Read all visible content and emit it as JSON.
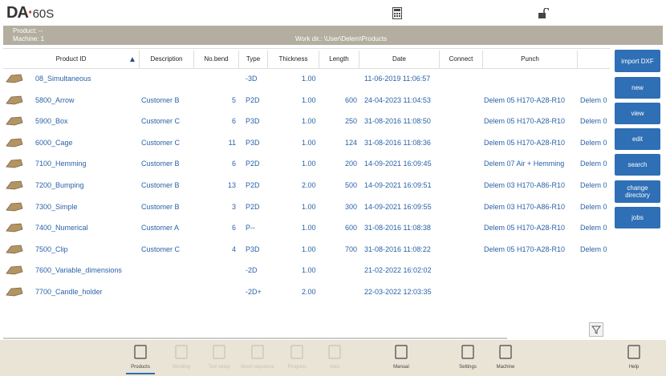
{
  "header": {
    "logo_main": "DA",
    "logo_dot": "·",
    "logo_model": "60S"
  },
  "status": {
    "product": "Product: --",
    "machine": "Machine: 1",
    "workdir": "Work dir.: \\User\\Delem\\Products"
  },
  "table": {
    "columns": [
      "Product ID",
      "Description",
      "No.bend",
      "Type",
      "Thickness",
      "Length",
      "Date",
      "Connect",
      "Punch"
    ],
    "sort_indicator": "▲",
    "rows": [
      {
        "id": "08_Simultaneous",
        "type": "-3D",
        "thickness": "1.00",
        "date": "11-06-2019 11:06:57"
      },
      {
        "id": "5800_Arrow",
        "description": "Customer B",
        "bends": "5",
        "type": "P2D",
        "thickness": "1.00",
        "length": "600",
        "date": "24-04-2023 11:04:53",
        "punch": "Delem 05 H170-A28-R10",
        "die": "Delem 0"
      },
      {
        "id": "5900_Box",
        "description": "Customer C",
        "bends": "6",
        "type": "P3D",
        "thickness": "1.00",
        "length": "250",
        "date": "31-08-2016 11:08:50",
        "punch": "Delem 05 H170-A28-R10",
        "die": "Delem 0"
      },
      {
        "id": "6000_Cage",
        "description": "Customer C",
        "bends": "11",
        "type": "P3D",
        "thickness": "1.00",
        "length": "124",
        "date": "31-08-2016 11:08:36",
        "punch": "Delem 05 H170-A28-R10",
        "die": "Delem 0"
      },
      {
        "id": "7100_Hemming",
        "description": "Customer B",
        "bends": "6",
        "type": "P2D",
        "thickness": "1.00",
        "length": "200",
        "date": "14-09-2021 16:09:45",
        "punch": "Delem 07 Air + Hemming",
        "die": "Delem 0"
      },
      {
        "id": "7200_Bumping",
        "description": "Customer B",
        "bends": "13",
        "type": "P2D",
        "thickness": "2.00",
        "length": "500",
        "date": "14-09-2021 16:09:51",
        "punch": "Delem 03 H170-A86-R10",
        "die": "Delem 0"
      },
      {
        "id": "7300_Simple",
        "description": "Customer B",
        "bends": "3",
        "type": "P2D",
        "thickness": "1.00",
        "length": "300",
        "date": "14-09-2021 16:09:55",
        "punch": "Delem 03 H170-A86-R10",
        "die": "Delem 0"
      },
      {
        "id": "7400_Numerical",
        "description": "Customer A",
        "bends": "6",
        "type": "P--",
        "thickness": "1.00",
        "length": "600",
        "date": "31-08-2016 11:08:38",
        "punch": "Delem 05 H170-A28-R10",
        "die": "Delem 0"
      },
      {
        "id": "7500_Clip",
        "description": "Customer C",
        "bends": "4",
        "type": "P3D",
        "thickness": "1.00",
        "length": "700",
        "date": "31-08-2016 11:08:22",
        "punch": "Delem 05 H170-A28-R10",
        "die": "Delem 0"
      },
      {
        "id": "7600_Variable_dimensions",
        "type": "-2D",
        "thickness": "1.00",
        "date": "21-02-2022 16:02:02"
      },
      {
        "id": "7700_Candle_holder",
        "type": "-2D+",
        "thickness": "2.00",
        "date": "22-03-2022 12:03:35"
      }
    ]
  },
  "buttons": [
    "import DXF",
    "new",
    "view",
    "edit",
    "search",
    "change directory",
    "jobs"
  ],
  "toolbar": [
    {
      "label": "Products",
      "active": true
    },
    {
      "label": "Bending"
    },
    {
      "label": "Tool setup"
    },
    {
      "label": "Bend sequence"
    },
    {
      "label": "Program"
    },
    {
      "label": "Auto"
    },
    {
      "label": "Manual",
      "active": true
    },
    {
      "label": "Settings",
      "active": true
    },
    {
      "label": "Machine",
      "active": true
    },
    {
      "label": "Help",
      "active": true
    }
  ]
}
